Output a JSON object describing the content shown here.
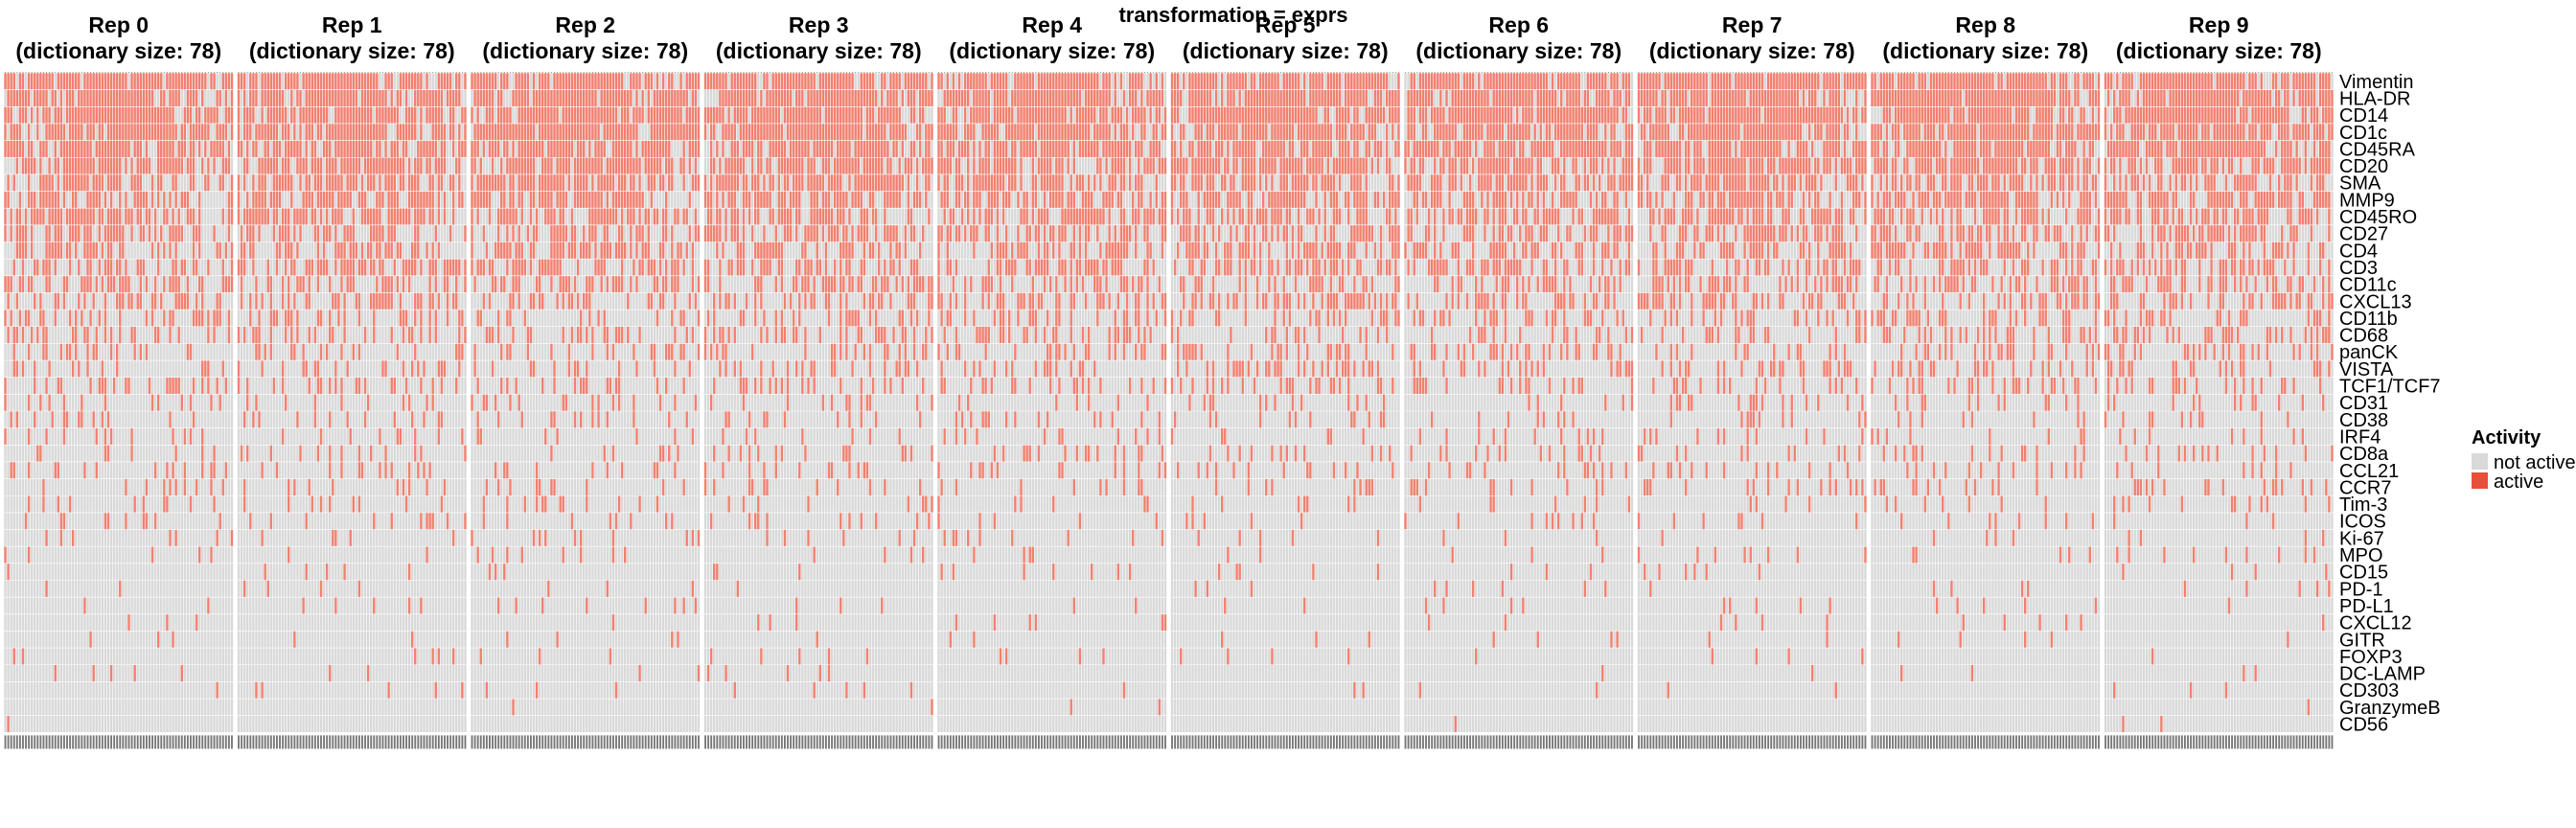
{
  "chart_data": {
    "type": "heatmap",
    "title": "transformation = exprs",
    "panels": [
      {
        "name": "Rep 0",
        "subtitle": "(dictionary size: 78)"
      },
      {
        "name": "Rep 1",
        "subtitle": "(dictionary size: 78)"
      },
      {
        "name": "Rep 2",
        "subtitle": "(dictionary size: 78)"
      },
      {
        "name": "Rep 3",
        "subtitle": "(dictionary size: 78)"
      },
      {
        "name": "Rep 4",
        "subtitle": "(dictionary size: 78)"
      },
      {
        "name": "Rep 5",
        "subtitle": "(dictionary size: 78)"
      },
      {
        "name": "Rep 6",
        "subtitle": "(dictionary size: 78)"
      },
      {
        "name": "Rep 7",
        "subtitle": "(dictionary size: 78)"
      },
      {
        "name": "Rep 8",
        "subtitle": "(dictionary size: 78)"
      },
      {
        "name": "Rep 9",
        "subtitle": "(dictionary size: 78)"
      }
    ],
    "columns_per_panel": 78,
    "rows": [
      "Vimentin",
      "HLA-DR",
      "CD14",
      "CD1c",
      "CD45RA",
      "CD20",
      "SMA",
      "MMP9",
      "CD45RO",
      "CD27",
      "CD4",
      "CD3",
      "CD11c",
      "CXCL13",
      "CD11b",
      "CD68",
      "panCK",
      "VISTA",
      "TCF1/TCF7",
      "CD31",
      "CD38",
      "IRF4",
      "CD8a",
      "CCL21",
      "CCR7",
      "Tim-3",
      "ICOS",
      "Ki-67",
      "MPO",
      "CD15",
      "PD-1",
      "PD-L1",
      "CXCL12",
      "GITR",
      "FOXP3",
      "DC-LAMP",
      "CD303",
      "GranzymeB",
      "CD56"
    ],
    "row_active_fraction": [
      0.97,
      0.96,
      0.95,
      0.94,
      0.9,
      0.86,
      0.78,
      0.72,
      0.66,
      0.6,
      0.56,
      0.5,
      0.44,
      0.4,
      0.3,
      0.28,
      0.27,
      0.26,
      0.25,
      0.13,
      0.14,
      0.11,
      0.16,
      0.15,
      0.12,
      0.1,
      0.1,
      0.07,
      0.05,
      0.05,
      0.04,
      0.04,
      0.04,
      0.03,
      0.03,
      0.02,
      0.02,
      0.01,
      0.01
    ],
    "legend": {
      "title": "Activity",
      "placement": "right",
      "entries": [
        {
          "label": "not active",
          "color": "#d9d9d9"
        },
        {
          "label": "active",
          "color": "#e8503a"
        }
      ]
    },
    "colors": {
      "active": "#f08070",
      "inactive": "#d9d9d9",
      "grid": "#ffffff",
      "dendrogram": "#555555"
    },
    "x_tick_labels_legible": false
  }
}
